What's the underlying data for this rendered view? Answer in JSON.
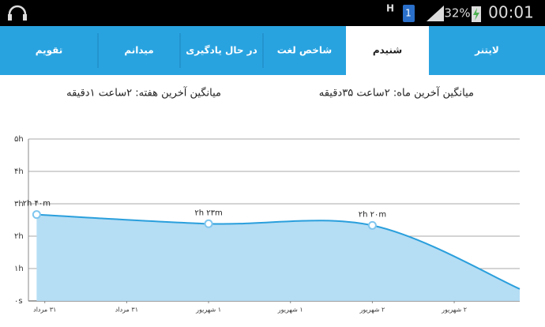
{
  "status_bar": {
    "network": "H",
    "sim": "1",
    "battery": "32%",
    "time": "00:01"
  },
  "tabs": {
    "items": [
      "لایتنر",
      "شنیدم",
      "شاخص لغت",
      "در حال یادگیری",
      "میدانم",
      "تقویم"
    ],
    "selected": 1
  },
  "summary": {
    "month": "میانگین آخرین ماه: ۲ساعت ۳۵دقیقه",
    "week": "میانگین آخرین هفته: ۲ساعت ۱دقیقه"
  },
  "chart_data": {
    "type": "area",
    "x": [
      -0.1,
      2,
      4,
      5.8
    ],
    "values": [
      2.667,
      2.383,
      2.333,
      0.37
    ],
    "value_labels": [
      "۲h ۴۰m",
      "۲h ۲۳m",
      "۲h ۲۰m",
      null
    ],
    "color": "#2a9fdc",
    "fill": "#b5ddf4",
    "xlim": [
      -0.2,
      5.8
    ],
    "xticks": [
      {
        "value": 0,
        "label": "۳۱ مرداد"
      },
      {
        "value": 1,
        "label": "۳۱ مرداد"
      },
      {
        "value": 2,
        "label": "۱ شهریور"
      },
      {
        "value": 3,
        "label": "۱ شهریور"
      },
      {
        "value": 4,
        "label": "۲ شهریور"
      },
      {
        "value": 5,
        "label": "۲ شهریور"
      }
    ],
    "ylim": [
      0,
      5
    ],
    "yticks": [
      {
        "value": 0,
        "label": "۰s"
      },
      {
        "value": 1,
        "label": "۱h"
      },
      {
        "value": 2,
        "label": "۲h"
      },
      {
        "value": 3,
        "label": "۳h"
      },
      {
        "value": 4,
        "label": "۴h"
      },
      {
        "value": 5,
        "label": "۵h"
      }
    ],
    "grid": true
  }
}
